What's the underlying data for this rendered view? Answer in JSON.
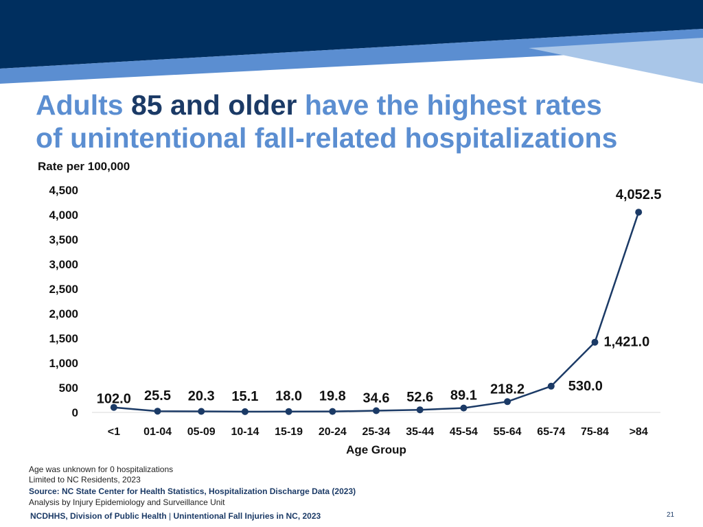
{
  "title": {
    "line1_prefix": "Adults",
    "line1_emphasis": "85 and older",
    "line1_suffix": "have the highest rates",
    "line2": "of unintentional fall-related hospitalizations"
  },
  "chart_data": {
    "type": "line",
    "ylabel": "Rate per 100,000",
    "xlabel": "Age Group",
    "categories": [
      "<1",
      "01-04",
      "05-09",
      "10-14",
      "15-19",
      "20-24",
      "25-34",
      "35-44",
      "45-54",
      "55-64",
      "65-74",
      "75-84",
      ">84"
    ],
    "values": [
      102.0,
      25.5,
      20.3,
      15.1,
      18.0,
      19.8,
      34.6,
      52.6,
      89.1,
      218.2,
      530.0,
      1421.0,
      4052.5
    ],
    "data_labels": [
      "102.0",
      "25.5",
      "20.3",
      "15.1",
      "18.0",
      "19.8",
      "34.6",
      "52.6",
      "89.1",
      "218.2",
      "530.0",
      "1,421.0",
      "4,052.5"
    ],
    "ylim": [
      0,
      4500
    ],
    "yticks": [
      0,
      500,
      1000,
      1500,
      2000,
      2500,
      3000,
      3500,
      4000,
      4500
    ],
    "ytick_labels": [
      "0",
      "500",
      "1,000",
      "1,500",
      "2,000",
      "2,500",
      "3,000",
      "3,500",
      "4,000",
      "4,500"
    ],
    "grid": false,
    "line_color": "#1b3a66"
  },
  "notes": {
    "line1": "Age was unknown for 0 hospitalizations",
    "line2": "Limited to NC Residents, 2023",
    "source": "Source: NC State Center for Health Statistics, Hospitalization Discharge Data (2023)",
    "line4": "Analysis by Injury Epidemiology and Surveillance Unit"
  },
  "footer": {
    "org": "NCDHHS, Division of Public Health",
    "separator": "|",
    "report": "Unintentional Fall Injuries in NC, 2023",
    "page": "21"
  },
  "colors": {
    "banner_dark": "#002f5f",
    "banner_mid": "#5b8ed1",
    "banner_light": "#a9c6e8",
    "title": "#5b8ed1",
    "title_emphasis": "#1b3a66"
  }
}
